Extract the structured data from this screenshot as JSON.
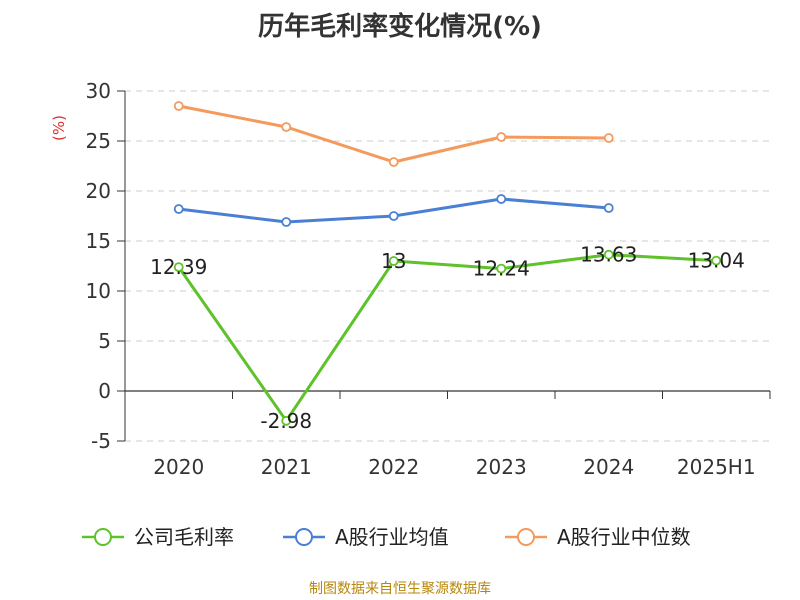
{
  "title": "历年毛利率变化情况(%)",
  "source": "制图数据来自恒生聚源数据库",
  "colors": {
    "series_gross_margin": "#5ec22b",
    "series_industry_avg": "#4a7fd6",
    "series_industry_median": "#f39a5c",
    "unit_label": "#e03030",
    "axis": "#333333",
    "grid": "#cccccc",
    "source_text": "#b8860b"
  },
  "chart_data": {
    "type": "line",
    "title": "历年毛利率变化情况(%)",
    "ylabel": "(%)",
    "xlabel": "",
    "categories": [
      "2020",
      "2021",
      "2022",
      "2023",
      "2024",
      "2025H1"
    ],
    "ylim": [
      -5,
      30
    ],
    "yticks": [
      30,
      25,
      20,
      15,
      10,
      5,
      0,
      -5
    ],
    "ytick_labels": [
      "30",
      "25",
      "20",
      "15",
      "10",
      "5",
      "0",
      "-5"
    ],
    "grid": true,
    "legend_position": "bottom",
    "series": [
      {
        "name": "公司毛利率",
        "values": [
          12.39,
          -2.98,
          13,
          12.24,
          13.63,
          13.04
        ],
        "labels": [
          "12.39",
          "-2.98",
          "13",
          "12.24",
          "13.63",
          "13.04"
        ],
        "color": "#5ec22b",
        "show_labels": true
      },
      {
        "name": "A股行业均值",
        "values": [
          18.2,
          16.9,
          17.5,
          19.2,
          18.3,
          null
        ],
        "color": "#4a7fd6",
        "show_labels": false
      },
      {
        "name": "A股行业中位数",
        "values": [
          28.5,
          26.4,
          22.9,
          25.4,
          25.3,
          null
        ],
        "color": "#f39a5c",
        "show_labels": false
      }
    ]
  }
}
